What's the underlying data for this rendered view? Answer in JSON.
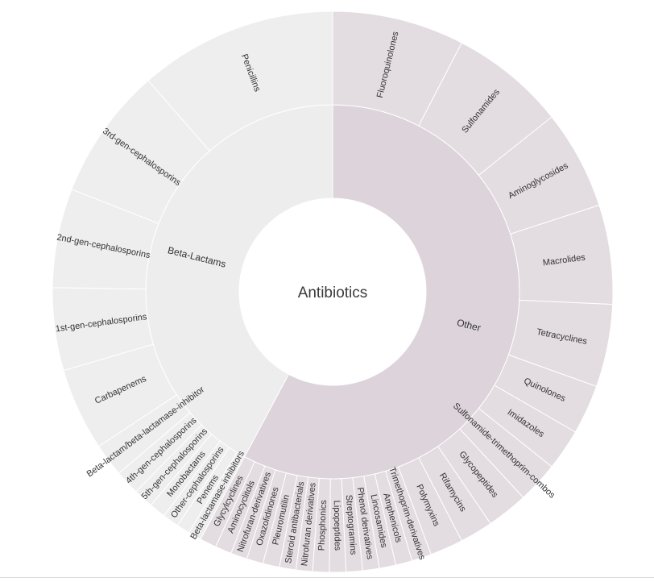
{
  "chart_data": {
    "type": "sunburst",
    "root": "Antibiotics",
    "groups": [
      {
        "name": "Beta-Lactams",
        "children": [
          {
            "name": "Penicillins",
            "value": 12
          },
          {
            "name": "3rd-gen-cephalosporins",
            "value": 8
          },
          {
            "name": "2nd-gen-cephalosporins",
            "value": 6
          },
          {
            "name": "1st-gen-cephalosporins",
            "value": 5
          },
          {
            "name": "Carbapenems",
            "value": 5
          },
          {
            "name": "Beta-lactam/beta-lactamase-inhibitor",
            "value": 2
          },
          {
            "name": "4th-gen-cephalosporins",
            "value": 1.5
          },
          {
            "name": "5th-gen-cephalosporins",
            "value": 1.2
          },
          {
            "name": "Monobactams",
            "value": 1
          },
          {
            "name": "Other-cephalosporins",
            "value": 1
          },
          {
            "name": "Penems",
            "value": 0.8
          },
          {
            "name": "Beta-lactamase-inhibitors",
            "value": 0.8
          }
        ]
      },
      {
        "name": "Other",
        "children": [
          {
            "name": "Fluoroquinolones",
            "value": 8
          },
          {
            "name": "Sulfonamides",
            "value": 7
          },
          {
            "name": "Aminoglycosides",
            "value": 6
          },
          {
            "name": "Macrolides",
            "value": 6
          },
          {
            "name": "Tetracyclines",
            "value": 5
          },
          {
            "name": "Quinolones",
            "value": 3
          },
          {
            "name": "Imidazoles",
            "value": 2.5
          },
          {
            "name": "Sulfonamide-trimethoprim-combos",
            "value": 2.5
          },
          {
            "name": "Glycopeptides",
            "value": 2.5
          },
          {
            "name": "Rifamycins",
            "value": 2
          },
          {
            "name": "Polymyxins",
            "value": 2
          },
          {
            "name": "Trimethoprim-derivatives",
            "value": 1.2
          },
          {
            "name": "Amphenicols",
            "value": 1
          },
          {
            "name": "Lincosamides",
            "value": 1
          },
          {
            "name": "Phenol derivatives",
            "value": 1
          },
          {
            "name": "Streptogramins",
            "value": 1
          },
          {
            "name": "Lipopeptides",
            "value": 1
          },
          {
            "name": "Phosphonics",
            "value": 1
          },
          {
            "name": "Nitrofuran derivatives",
            "value": 1
          },
          {
            "name": "Steroid antibacterials",
            "value": 1
          },
          {
            "name": "Pleuromutilin",
            "value": 1
          },
          {
            "name": "Oxazolidinones",
            "value": 1
          },
          {
            "name": "Nitrofuran-derivatives",
            "value": 1
          },
          {
            "name": "Aminocyclitols",
            "value": 1
          },
          {
            "name": "Glycylcyclines",
            "value": 1
          }
        ]
      }
    ]
  }
}
